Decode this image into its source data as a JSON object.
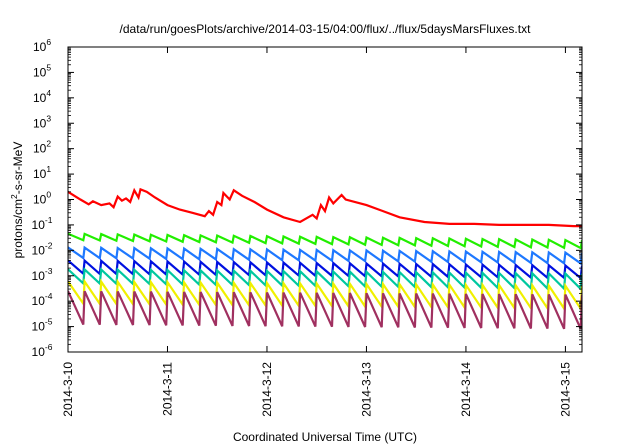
{
  "chart_data": {
    "type": "line",
    "title": "/data/run/goesPlots/archive/2014-03-15/04:00/flux/../flux/5daysMarsFluxes.txt",
    "xlabel": "Coordinated Universal Time (UTC)",
    "ylabel": {
      "prefix": "protons/cm",
      "superscript": "2",
      "suffix": "-s-sr-MeV"
    },
    "y_scale": "log",
    "ylim": [
      1e-06,
      1000000.0
    ],
    "y_ticks": [
      {
        "base": "10",
        "exp": "-6",
        "value": 1e-06
      },
      {
        "base": "10",
        "exp": "-5",
        "value": 1e-05
      },
      {
        "base": "10",
        "exp": "-4",
        "value": 0.0001
      },
      {
        "base": "10",
        "exp": "-3",
        "value": 0.001
      },
      {
        "base": "10",
        "exp": "-2",
        "value": 0.01
      },
      {
        "base": "10",
        "exp": "-1",
        "value": 0.1
      },
      {
        "base": "10",
        "exp": "0",
        "value": 1
      },
      {
        "base": "10",
        "exp": "1",
        "value": 10
      },
      {
        "base": "10",
        "exp": "2",
        "value": 100
      },
      {
        "base": "10",
        "exp": "3",
        "value": 1000
      },
      {
        "base": "10",
        "exp": "4",
        "value": 10000
      },
      {
        "base": "10",
        "exp": "5",
        "value": 100000
      },
      {
        "base": "10",
        "exp": "6",
        "value": 1000000
      }
    ],
    "xlim": [
      "2014-03-10 00:00",
      "2014-03-15 04:00"
    ],
    "x_ticks": [
      {
        "label": "2014-3-10",
        "value": "2014-03-10"
      },
      {
        "label": "2014-3-11",
        "value": "2014-03-11"
      },
      {
        "label": "2014-3-12",
        "value": "2014-03-12"
      },
      {
        "label": "2014-3-13",
        "value": "2014-03-13"
      },
      {
        "label": "2014-3-14",
        "value": "2014-03-14"
      },
      {
        "label": "2014-3-15",
        "value": "2014-03-15"
      }
    ],
    "legend": "none",
    "grid": false,
    "series": [
      {
        "color": "#ff0000",
        "points": [
          [
            "2014-03-10 00:00",
            2.0
          ],
          [
            "2014-03-10 03:00",
            1.0
          ],
          [
            "2014-03-10 05:00",
            0.65
          ],
          [
            "2014-03-10 06:00",
            0.85
          ],
          [
            "2014-03-10 08:00",
            0.6
          ],
          [
            "2014-03-10 10:00",
            0.7
          ],
          [
            "2014-03-10 11:00",
            0.5
          ],
          [
            "2014-03-10 12:00",
            1.3
          ],
          [
            "2014-03-10 13:00",
            0.9
          ],
          [
            "2014-03-10 14:00",
            1.1
          ],
          [
            "2014-03-10 15:00",
            0.8
          ],
          [
            "2014-03-10 16:00",
            2.3
          ],
          [
            "2014-03-10 17:00",
            1.2
          ],
          [
            "2014-03-10 17:30",
            2.5
          ],
          [
            "2014-03-10 19:00",
            2.0
          ],
          [
            "2014-03-10 21:00",
            1.2
          ],
          [
            "2014-03-11 00:00",
            0.6
          ],
          [
            "2014-03-11 03:00",
            0.4
          ],
          [
            "2014-03-11 06:00",
            0.3
          ],
          [
            "2014-03-11 09:00",
            0.22
          ],
          [
            "2014-03-11 10:00",
            0.35
          ],
          [
            "2014-03-11 11:00",
            0.25
          ],
          [
            "2014-03-11 12:00",
            0.8
          ],
          [
            "2014-03-11 13:00",
            0.6
          ],
          [
            "2014-03-11 13:30",
            1.8
          ],
          [
            "2014-03-11 15:00",
            1.0
          ],
          [
            "2014-03-11 16:00",
            2.3
          ],
          [
            "2014-03-11 18:00",
            1.4
          ],
          [
            "2014-03-11 21:00",
            0.8
          ],
          [
            "2014-03-12 00:00",
            0.4
          ],
          [
            "2014-03-12 04:00",
            0.2
          ],
          [
            "2014-03-12 08:00",
            0.13
          ],
          [
            "2014-03-12 11:00",
            0.25
          ],
          [
            "2014-03-12 12:00",
            0.18
          ],
          [
            "2014-03-12 13:00",
            0.6
          ],
          [
            "2014-03-12 14:00",
            0.35
          ],
          [
            "2014-03-12 15:00",
            1.2
          ],
          [
            "2014-03-12 16:00",
            0.7
          ],
          [
            "2014-03-12 18:00",
            1.5
          ],
          [
            "2014-03-12 19:00",
            1.0
          ],
          [
            "2014-03-13 00:00",
            0.6
          ],
          [
            "2014-03-13 04:00",
            0.35
          ],
          [
            "2014-03-13 08:00",
            0.2
          ],
          [
            "2014-03-13 14:00",
            0.13
          ],
          [
            "2014-03-13 20:00",
            0.11
          ],
          [
            "2014-03-14 02:00",
            0.11
          ],
          [
            "2014-03-14 08:00",
            0.1
          ],
          [
            "2014-03-14 14:00",
            0.1
          ],
          [
            "2014-03-14 20:00",
            0.1
          ],
          [
            "2014-03-15 02:00",
            0.09
          ],
          [
            "2014-03-15 04:00",
            0.09
          ]
        ]
      },
      {
        "color": "#22ee00",
        "sawtooth": true,
        "period_hours": 4,
        "peak_start": 0.045,
        "peak_end": 0.025,
        "trough_start": 0.025,
        "trough_end": 0.012
      },
      {
        "color": "#1e78ff",
        "sawtooth": true,
        "period_hours": 4,
        "peak_start": 0.013,
        "peak_end": 0.008,
        "trough_start": 0.005,
        "trough_end": 0.003
      },
      {
        "color": "#0010e0",
        "sawtooth": true,
        "period_hours": 4,
        "peak_start": 0.004,
        "peak_end": 0.0025,
        "trough_start": 0.0012,
        "trough_end": 0.0008
      },
      {
        "color": "#00c8a0",
        "sawtooth": true,
        "period_hours": 4,
        "peak_start": 0.0018,
        "peak_end": 0.0012,
        "trough_start": 0.0005,
        "trough_end": 0.0003
      },
      {
        "color": "#f0f000",
        "sawtooth": true,
        "period_hours": 4,
        "peak_start": 0.0006,
        "peak_end": 0.0004,
        "trough_start": 8e-05,
        "trough_end": 5e-05
      },
      {
        "color": "#a03060",
        "sawtooth": true,
        "period_hours": 4,
        "peak_start": 0.00025,
        "peak_end": 0.00018,
        "trough_start": 1.2e-05,
        "trough_end": 8e-06
      }
    ]
  }
}
